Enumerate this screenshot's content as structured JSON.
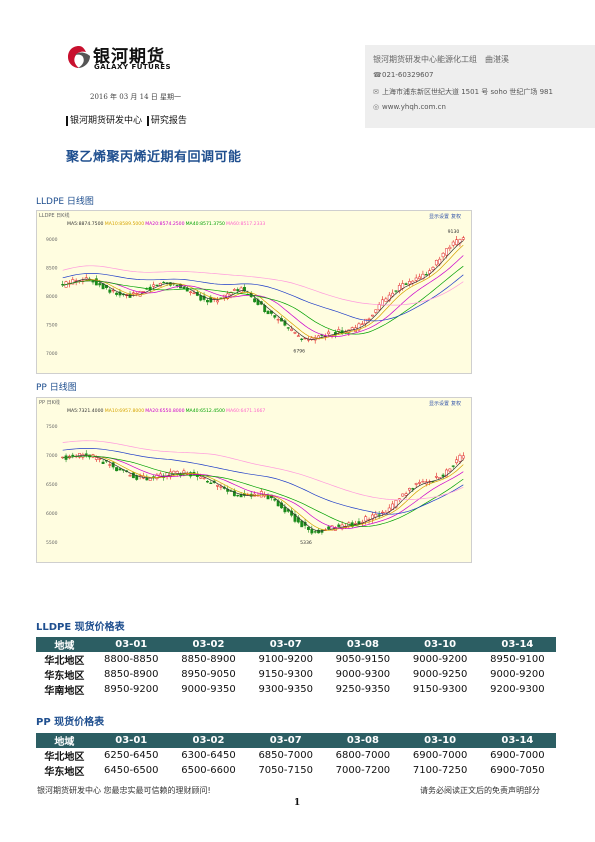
{
  "header": {
    "logo_cn": "银河期货",
    "logo_en": "GALAXY FUTURES",
    "date": "2016 年 03 月 14 日 星期一",
    "dept_a": "银河期货研发中心",
    "dept_b": "研究报告"
  },
  "contact": {
    "title": "银河期货研发中心能源化工组　曲湛溪",
    "phone": "021-60329607",
    "address": "上海市浦东新区世纪大道 1501 号 soho 世纪广场 981",
    "website": "www.yhqh.com.cn"
  },
  "title": "聚乙烯聚丙烯近期有回调可能",
  "charts": [
    {
      "section_label": "LLDPE 日线图",
      "topbar": "LLDPE 日K线",
      "ma_legend": [
        {
          "text": "MA5:8874.7500",
          "color": "#333333"
        },
        {
          "text": "MA10:8589.5000",
          "color": "#d6a400"
        },
        {
          "text": "MA20:8574.2500",
          "color": "#cc00cc"
        },
        {
          "text": "MA40:8571.3750",
          "color": "#00a000"
        },
        {
          "text": "MA60:8517.2333",
          "color": "#ff66cc"
        }
      ],
      "y_ticks": [
        "9000",
        "8500",
        "8000",
        "7500",
        "7000"
      ],
      "high_label": "9130",
      "low_label": "6796",
      "buttons": [
        "显示设置",
        "复权"
      ]
    },
    {
      "section_label": "PP 日线图",
      "topbar": "PP 日K线",
      "ma_legend": [
        {
          "text": "MA5:7321.4000",
          "color": "#333333"
        },
        {
          "text": "MA10:6957.8000",
          "color": "#d6a400"
        },
        {
          "text": "MA20:6550.8000",
          "color": "#cc00cc"
        },
        {
          "text": "MA40:6512.4500",
          "color": "#00a000"
        },
        {
          "text": "MA60:6471.1667",
          "color": "#ff66cc"
        }
      ],
      "y_ticks": [
        "7500",
        "7000",
        "6500",
        "6000",
        "5500"
      ],
      "high_label": "",
      "low_label": "5336",
      "buttons": [
        "显示设置",
        "复权"
      ]
    }
  ],
  "lldpe_table": {
    "title": "LLDPE 现货价格表",
    "headers": [
      "地域",
      "03-01",
      "03-02",
      "03-07",
      "03-08",
      "03-10",
      "03-14"
    ],
    "rows": [
      [
        "华北地区",
        "8800-8850",
        "8850-8900",
        "9100-9200",
        "9050-9150",
        "9000-9200",
        "8950-9100"
      ],
      [
        "华东地区",
        "8850-8900",
        "8950-9050",
        "9150-9300",
        "9000-9300",
        "9000-9250",
        "9000-9200"
      ],
      [
        "华南地区",
        "8950-9200",
        "9000-9350",
        "9300-9350",
        "9250-9350",
        "9150-9300",
        "9200-9300"
      ]
    ]
  },
  "pp_table": {
    "title": "PP 现货价格表",
    "headers": [
      "地域",
      "03-01",
      "03-02",
      "03-07",
      "03-08",
      "03-10",
      "03-14"
    ],
    "rows": [
      [
        "华北地区",
        "6250-6450",
        "6300-6450",
        "6850-7000",
        "6800-7000",
        "6900-7000",
        "6900-7000"
      ],
      [
        "华东地区",
        "6450-6500",
        "6500-6600",
        "7050-7150",
        "7000-7200",
        "7100-7250",
        "6900-7050"
      ]
    ]
  },
  "footer": {
    "left": "银河期货研发中心 您最忠实最可信赖的理财顾问!",
    "right": "请务必阅读正文后的免责声明部分",
    "page": "1"
  }
}
